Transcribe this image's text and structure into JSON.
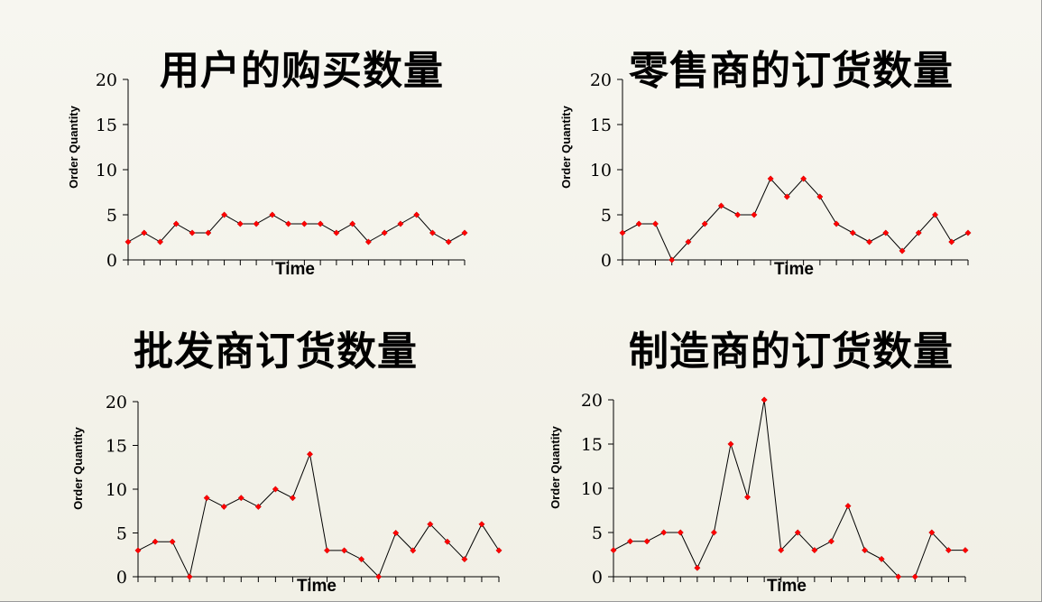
{
  "chart_data": [
    {
      "type": "line",
      "title": "用户的购买数量",
      "xlabel": "Time",
      "ylabel": "Order Quantity",
      "yticks": [
        "0",
        "5",
        "10",
        "15",
        "20"
      ],
      "ylim": [
        0,
        20
      ],
      "grid": false,
      "marker_color": "#ff0000",
      "line_color": "#000000",
      "values": [
        2,
        3,
        2,
        4,
        3,
        3,
        5,
        4,
        4,
        5,
        4,
        4,
        4,
        3,
        4,
        2,
        3,
        4,
        5,
        3,
        2,
        3
      ]
    },
    {
      "type": "line",
      "title": "零售商的订货数量",
      "xlabel": "Time",
      "ylabel": "Order Quantity",
      "yticks": [
        "0",
        "5",
        "10",
        "15",
        "20"
      ],
      "ylim": [
        0,
        20
      ],
      "grid": false,
      "marker_color": "#ff0000",
      "line_color": "#000000",
      "values": [
        3,
        4,
        4,
        0,
        2,
        4,
        6,
        5,
        5,
        9,
        7,
        9,
        7,
        4,
        3,
        2,
        3,
        1,
        3,
        5,
        2,
        3
      ]
    },
    {
      "type": "line",
      "title": "批发商订货数量",
      "xlabel": "Time",
      "ylabel": "Order Quantity",
      "yticks": [
        "0",
        "5",
        "10",
        "15",
        "20"
      ],
      "ylim": [
        0,
        20
      ],
      "grid": false,
      "marker_color": "#ff0000",
      "line_color": "#000000",
      "values": [
        3,
        4,
        4,
        0,
        9,
        8,
        9,
        8,
        10,
        9,
        14,
        3,
        3,
        2,
        0,
        5,
        3,
        6,
        4,
        2,
        6,
        3
      ]
    },
    {
      "type": "line",
      "title": "制造商的订货数量",
      "xlabel": "Time",
      "ylabel": "Order Quantity",
      "yticks": [
        "0",
        "5",
        "10",
        "15",
        "20"
      ],
      "ylim": [
        0,
        20
      ],
      "grid": false,
      "marker_color": "#ff0000",
      "line_color": "#000000",
      "values": [
        3,
        4,
        4,
        5,
        5,
        1,
        5,
        15,
        9,
        20,
        3,
        5,
        3,
        4,
        8,
        3,
        2,
        0,
        0,
        5,
        3,
        3
      ]
    }
  ]
}
